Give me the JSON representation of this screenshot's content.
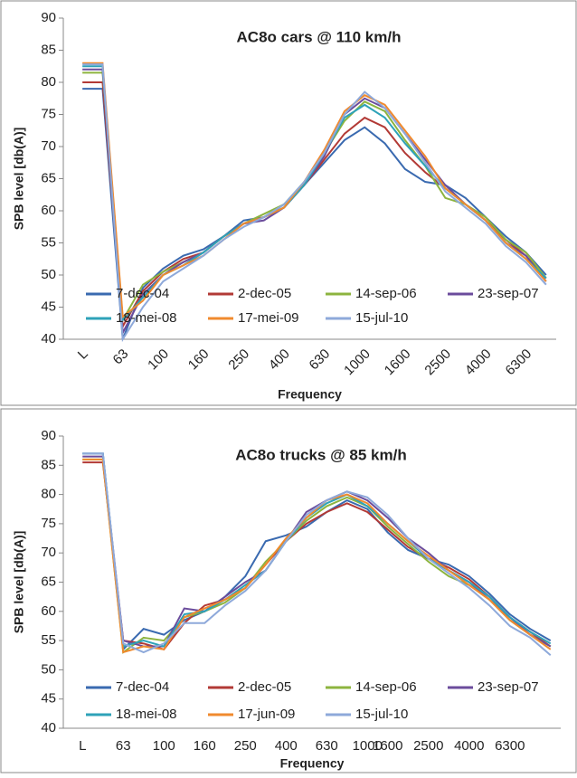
{
  "chart_data": [
    {
      "type": "line",
      "title": "AC8o cars @ 110 km/h",
      "x_label": "Frequency",
      "y_label": "SPB level [db(A)]",
      "categories": [
        "L",
        null,
        "63",
        null,
        "100",
        null,
        "160",
        null,
        "250",
        null,
        "400",
        null,
        "630",
        null,
        "1000",
        null,
        "1600",
        null,
        "2500",
        null,
        "4000",
        null,
        "6300",
        null
      ],
      "ylim": [
        40,
        90
      ],
      "yticks": [
        40,
        45,
        50,
        55,
        60,
        65,
        70,
        75,
        80,
        85,
        90
      ],
      "grid": false,
      "x_label_rotation": -45,
      "series": [
        {
          "name": "7-dec-04",
          "color": "#3a6ab0",
          "values": [
            79,
            79,
            40,
            48,
            51,
            53,
            54,
            56,
            58.5,
            59,
            61,
            64,
            67.5,
            71,
            73,
            70.5,
            66.5,
            64.5,
            64,
            62,
            59,
            56,
            53.5,
            50
          ]
        },
        {
          "name": "2-dec-05",
          "color": "#b23a36",
          "values": [
            80,
            80,
            42,
            47.5,
            50.5,
            52.5,
            53.5,
            56,
            58,
            59,
            60.5,
            64,
            68,
            72,
            74.5,
            73,
            69,
            66,
            63.5,
            61,
            58.5,
            55.5,
            53,
            49.5
          ]
        },
        {
          "name": "14-sep-06",
          "color": "#8db43f",
          "values": [
            81.5,
            81.5,
            43,
            48.5,
            50.5,
            52,
            53.5,
            56,
            58,
            59.5,
            61,
            64.5,
            69,
            74,
            77,
            75.5,
            71,
            67,
            62,
            61,
            59,
            55.5,
            53.5,
            49.5
          ]
        },
        {
          "name": "23-sep-07",
          "color": "#6b4c9c",
          "values": [
            82,
            82,
            41,
            47,
            50,
            52,
            53.5,
            56,
            58,
            58.5,
            60.5,
            64,
            68.5,
            75,
            77.5,
            76,
            72,
            68,
            64,
            61,
            58.5,
            55,
            53,
            49
          ]
        },
        {
          "name": "18-mei-08",
          "color": "#2ea2b8",
          "values": [
            82.5,
            82.5,
            43,
            46.5,
            50,
            51.5,
            53.5,
            56,
            58,
            59,
            60.5,
            64,
            69,
            74.5,
            76.5,
            74.5,
            70.5,
            67,
            63.5,
            61,
            58.5,
            55,
            52.5,
            49.5
          ]
        },
        {
          "name": "17-mei-09",
          "color": "#f08a2e",
          "values": [
            83,
            83,
            43.5,
            46,
            50,
            51.5,
            53,
            55.5,
            58,
            59,
            60.5,
            64.5,
            69.5,
            75.5,
            78,
            76.5,
            72.5,
            68.5,
            63.5,
            61,
            58.5,
            55,
            52.5,
            49
          ]
        },
        {
          "name": "15-jul-10",
          "color": "#8ea9da",
          "values": [
            82.8,
            82.8,
            40,
            45,
            49,
            51,
            53,
            55.5,
            57.5,
            59,
            61,
            64.5,
            69,
            75,
            78.5,
            76,
            72,
            67.5,
            63,
            60.5,
            58,
            54.5,
            52,
            48.5
          ]
        }
      ]
    },
    {
      "type": "line",
      "title": "AC8o trucks @ 85 km/h",
      "x_label": "Frequency",
      "y_label": "SPB level [db(A)]",
      "categories": [
        "L",
        null,
        "63",
        null,
        "100",
        null,
        "160",
        null,
        "250",
        null,
        "400",
        null,
        "630",
        null,
        "1000",
        "1600",
        null,
        "2500",
        null,
        "4000",
        null,
        "6300",
        null,
        null
      ],
      "ylim": [
        40,
        90
      ],
      "yticks": [
        40,
        45,
        50,
        55,
        60,
        65,
        70,
        75,
        80,
        85,
        90
      ],
      "grid": false,
      "x_label_rotation": 0,
      "series": [
        {
          "name": "7-dec-04",
          "color": "#3a6ab0",
          "values": [
            87,
            87,
            53.5,
            57,
            56,
            58.5,
            60,
            62.5,
            66,
            72,
            73,
            74.5,
            77,
            79,
            77.5,
            73.5,
            70.5,
            69,
            68,
            66,
            63,
            59.5,
            57,
            55
          ]
        },
        {
          "name": "2-dec-05",
          "color": "#b23a36",
          "values": [
            85.5,
            85.5,
            55,
            54.5,
            53.5,
            58,
            61,
            62,
            64,
            68,
            72,
            75,
            77,
            78.5,
            77,
            74,
            71,
            69,
            67.5,
            65.5,
            62.5,
            59,
            56.5,
            54
          ]
        },
        {
          "name": "14-sep-06",
          "color": "#8db43f",
          "values": [
            86,
            86,
            53,
            55.5,
            55,
            59,
            60,
            61.5,
            64,
            68.5,
            72,
            75.5,
            78,
            79.5,
            78,
            74.5,
            71.5,
            68.5,
            66,
            64.5,
            62,
            58.5,
            56,
            54
          ]
        },
        {
          "name": "23-sep-07",
          "color": "#6b4c9c",
          "values": [
            86.5,
            86.5,
            55,
            54,
            54,
            60.5,
            60,
            62.5,
            65,
            67,
            72,
            77,
            79,
            80.5,
            79,
            76,
            72.5,
            70,
            67,
            65,
            62,
            59,
            56,
            54
          ]
        },
        {
          "name": "18-mei-08",
          "color": "#2ea2b8",
          "values": [
            87,
            87,
            54,
            55,
            54,
            59.5,
            60,
            62,
            64.5,
            67,
            72,
            76,
            78.5,
            80,
            78,
            75,
            72,
            69,
            67,
            65,
            62.5,
            59,
            56.5,
            54.5
          ]
        },
        {
          "name": "17-jun-09",
          "color": "#f08a2e",
          "values": [
            86,
            86,
            53,
            54,
            53.5,
            59,
            60.5,
            62,
            64,
            68,
            72.5,
            76,
            79,
            80,
            78.5,
            75,
            72,
            69.5,
            67,
            64.5,
            62,
            58.5,
            56,
            53.5
          ]
        },
        {
          "name": "15-jul-10",
          "color": "#8ea9da",
          "values": [
            87,
            87,
            54.5,
            53,
            54.5,
            58,
            58,
            61,
            63.5,
            67,
            72,
            76.5,
            79,
            80.5,
            79.5,
            76.5,
            72.5,
            69,
            66.5,
            64,
            61,
            57.5,
            55.5,
            52.5
          ]
        }
      ]
    }
  ]
}
